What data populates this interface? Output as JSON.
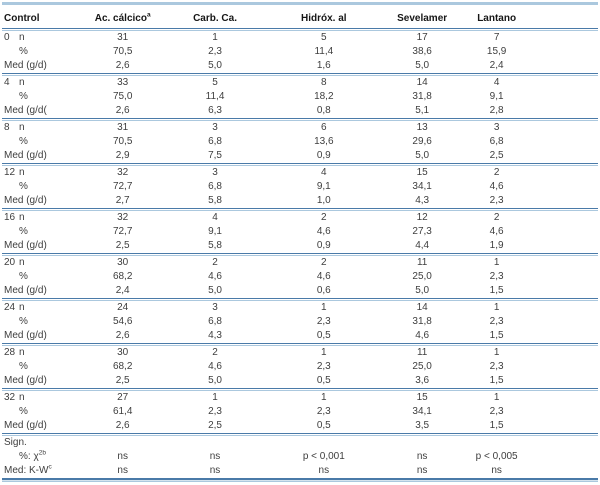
{
  "colors": {
    "rule_dark": "#4a7aa8",
    "rule_light": "#abc8de"
  },
  "table": {
    "headers": [
      "Control",
      "Ac. cálcico",
      "Carb. Ca.",
      "Hidróx. al",
      "Sevelamer",
      "Lantano"
    ],
    "header_sups": [
      "",
      "a",
      "",
      "",
      "",
      ""
    ],
    "row_labels": {
      "n": "n",
      "pct": "%"
    },
    "groups": [
      {
        "week": "0",
        "n": [
          "31",
          "1",
          "5",
          "17",
          "7"
        ],
        "pct": [
          "70,5",
          "2,3",
          "11,4",
          "38,6",
          "15,9"
        ],
        "med_label": "Med (g/d)",
        "med": [
          "2,6",
          "5,0",
          "1,6",
          "5,0",
          "2,4"
        ]
      },
      {
        "week": "4",
        "n": [
          "33",
          "5",
          "8",
          "14",
          "4"
        ],
        "pct": [
          "75,0",
          "11,4",
          "18,2",
          "31,8",
          "9,1"
        ],
        "med_label": "Med (g/d(",
        "med": [
          "2,6",
          "6,3",
          "0,8",
          "5,1",
          "2,8"
        ]
      },
      {
        "week": "8",
        "n": [
          "31",
          "3",
          "6",
          "13",
          "3"
        ],
        "pct": [
          "70,5",
          "6,8",
          "13,6",
          "29,6",
          "6,8"
        ],
        "med_label": "Med (g/d)",
        "med": [
          "2,9",
          "7,5",
          "0,9",
          "5,0",
          "2,5"
        ]
      },
      {
        "week": "12",
        "n": [
          "32",
          "3",
          "4",
          "15",
          "2"
        ],
        "pct": [
          "72,7",
          "6,8",
          "9,1",
          "34,1",
          "4,6"
        ],
        "med_label": "Med (g/d)",
        "med": [
          "2,7",
          "5,8",
          "1,0",
          "4,3",
          "2,3"
        ]
      },
      {
        "week": "16",
        "n": [
          "32",
          "4",
          "2",
          "12",
          "2"
        ],
        "pct": [
          "72,7",
          "9,1",
          "4,6",
          "27,3",
          "4,6"
        ],
        "med_label": "Med (g/d)",
        "med": [
          "2,5",
          "5,8",
          "0,9",
          "4,4",
          "1,9"
        ]
      },
      {
        "week": "20",
        "n": [
          "30",
          "2",
          "2",
          "11",
          "1"
        ],
        "pct": [
          "68,2",
          "4,6",
          "4,6",
          "25,0",
          "2,3"
        ],
        "med_label": "Med (g/d)",
        "med": [
          "2,4",
          "5,0",
          "0,6",
          "5,0",
          "1,5"
        ]
      },
      {
        "week": "24",
        "n": [
          "24",
          "3",
          "1",
          "14",
          "1"
        ],
        "pct": [
          "54,6",
          "6,8",
          "2,3",
          "31,8",
          "2,3"
        ],
        "med_label": "Med (g/d)",
        "med": [
          "2,6",
          "4,3",
          "0,5",
          "4,6",
          "1,5"
        ]
      },
      {
        "week": "28",
        "n": [
          "30",
          "2",
          "1",
          "11",
          "1"
        ],
        "pct": [
          "68,2",
          "4,6",
          "2,3",
          "25,0",
          "2,3"
        ],
        "med_label": "Med (g/d)",
        "med": [
          "2,5",
          "5,0",
          "0,5",
          "3,6",
          "1,5"
        ]
      },
      {
        "week": "32",
        "n": [
          "27",
          "1",
          "1",
          "15",
          "1"
        ],
        "pct": [
          "61,4",
          "2,3",
          "2,3",
          "34,1",
          "2,3"
        ],
        "med_label": "Med (g/d)",
        "med": [
          "2,6",
          "2,5",
          "0,5",
          "3,5",
          "1,5"
        ]
      }
    ],
    "sign": {
      "label": "Sign.",
      "rows": [
        {
          "prefix": "%: χ",
          "sup": "2b",
          "values": [
            "ns",
            "ns",
            "p < 0,001",
            "ns",
            "p < 0,005"
          ]
        },
        {
          "prefix": "Med: K-W",
          "sup": "c",
          "values": [
            "ns",
            "ns",
            "ns",
            "ns",
            "ns"
          ]
        }
      ]
    }
  }
}
